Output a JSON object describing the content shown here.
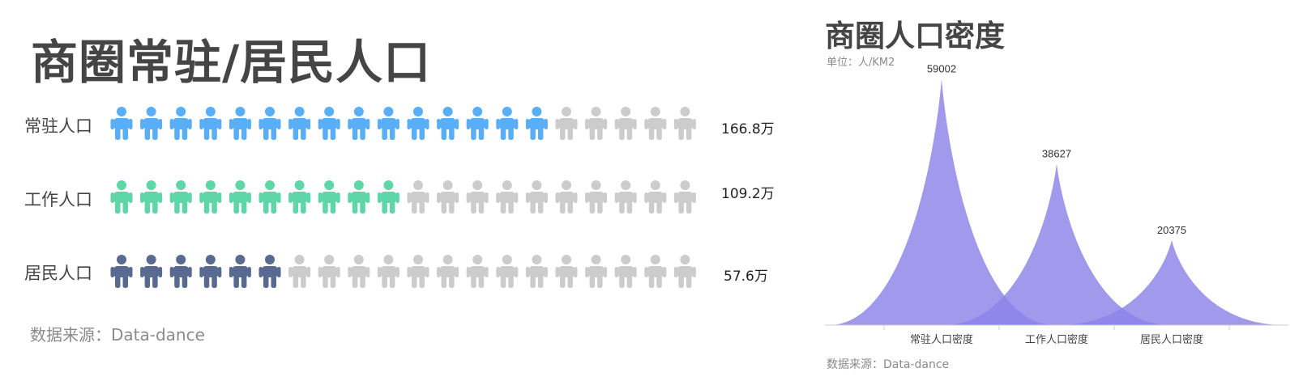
{
  "pictograph": {
    "title": "商圈常驻/居民人口",
    "source": "数据来源：Data-dance",
    "inactive_color": "#cccccc",
    "icon_total": 20,
    "rows": [
      {
        "label": "常驻人口",
        "value": "166.8万",
        "active": 15,
        "color": "#5aaef5"
      },
      {
        "label": "工作人口",
        "value": "109.2万",
        "active": 10,
        "color": "#5fd6a8"
      },
      {
        "label": "居民人口",
        "value": "57.6万",
        "active": 6,
        "color": "#586a8f"
      }
    ]
  },
  "chart_data": {
    "type": "area",
    "title": "商圈人口密度",
    "unit": "单位：人/KM2",
    "categories": [
      "常驻人口密度",
      "工作人口密度",
      "居民人口密度"
    ],
    "values": [
      59002,
      38627,
      20375
    ],
    "ylim": [
      0,
      62000
    ],
    "color": "#8b82e8",
    "source": "数据来源：Data-dance",
    "legend": "none",
    "grid": false
  }
}
